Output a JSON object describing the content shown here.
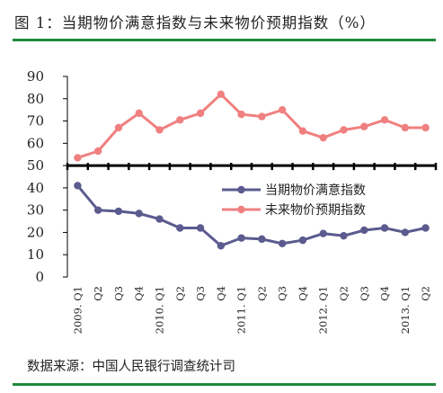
{
  "title": "图 1：当期物价满意指数与未来物价预期指数（%）",
  "source": "数据来源：中国人民银行调查统计司",
  "colors": {
    "series_current": "#5b5b8f",
    "series_future": "#f08080",
    "rule": "#1f8a3a",
    "axis": "#000000"
  },
  "chart_data": {
    "type": "line",
    "title": "",
    "xlabel": "",
    "ylabel": "",
    "ylim": [
      0,
      90
    ],
    "yticks": [
      0,
      10,
      20,
      30,
      40,
      50,
      60,
      70,
      80,
      90
    ],
    "grid": false,
    "legend_position": "middle-right",
    "categories": [
      "2009. Q1",
      "Q2",
      "Q3",
      "Q4",
      "2010. Q1",
      "Q2",
      "Q3",
      "Q4",
      "2011. Q1",
      "Q2",
      "Q3",
      "Q4",
      "2012. Q1",
      "Q2",
      "Q3",
      "Q4",
      "2013. Q1",
      "Q2"
    ],
    "series": [
      {
        "name": "当期物价满意指数",
        "values": [
          41,
          30,
          29.5,
          28.5,
          26,
          22,
          22,
          14,
          17.5,
          17,
          15,
          16.5,
          19.5,
          18.5,
          21,
          22,
          20,
          22
        ]
      },
      {
        "name": "未来物价预期指数",
        "values": [
          53.5,
          56.5,
          67,
          73.5,
          66,
          70.5,
          73.5,
          82,
          73,
          72,
          75,
          65.5,
          62.5,
          66,
          67.5,
          70.5,
          67,
          67
        ]
      }
    ]
  }
}
